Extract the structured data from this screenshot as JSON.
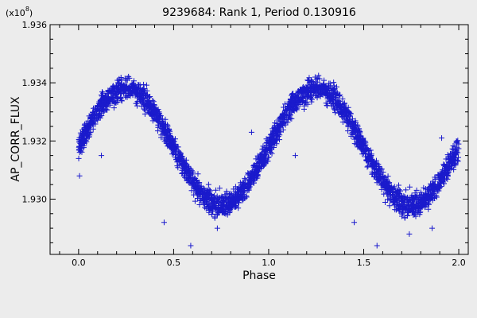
{
  "chart_data": {
    "type": "scatter",
    "title": "9239684: Rank 1, Period 0.130916",
    "xlabel": "Phase",
    "ylabel": "AP_CORR_FLUX",
    "y_multiplier": "(x10",
    "y_multiplier_exp": "8",
    "y_multiplier_close": ")",
    "xlim": [
      -0.15,
      2.05
    ],
    "ylim": [
      1.9281,
      1.936
    ],
    "x_ticks": [
      0.0,
      0.5,
      1.0,
      1.5,
      2.0
    ],
    "x_tick_labels": [
      "0.0",
      "0.5",
      "1.0",
      "1.5",
      "2.0"
    ],
    "y_ticks": [
      1.93,
      1.932,
      1.934,
      1.936
    ],
    "y_tick_labels": [
      "1.930",
      "1.932",
      "1.934",
      "1.936"
    ],
    "grid": false,
    "marker": "+",
    "series": [
      {
        "color": "#1a1acc",
        "model": {
          "mean": 1.9318,
          "amplitude": 0.002,
          "peak_phase": 0.25,
          "period_in_phase": 1.0,
          "scatter": 0.00045
        },
        "points_approx": [
          [
            0.0,
            1.932
          ],
          [
            0.05,
            1.9326
          ],
          [
            0.1,
            1.9331
          ],
          [
            0.15,
            1.9336
          ],
          [
            0.2,
            1.9339
          ],
          [
            0.25,
            1.934
          ],
          [
            0.3,
            1.9339
          ],
          [
            0.35,
            1.9336
          ],
          [
            0.4,
            1.9331
          ],
          [
            0.45,
            1.9325
          ],
          [
            0.5,
            1.9318
          ],
          [
            0.55,
            1.9311
          ],
          [
            0.6,
            1.9305
          ],
          [
            0.65,
            1.93
          ],
          [
            0.7,
            1.9297
          ],
          [
            0.75,
            1.9296
          ],
          [
            0.8,
            1.9297
          ],
          [
            0.85,
            1.93
          ],
          [
            0.9,
            1.9305
          ],
          [
            0.95,
            1.9311
          ],
          [
            1.0,
            1.9318
          ],
          [
            1.05,
            1.9326
          ],
          [
            1.1,
            1.9331
          ],
          [
            1.15,
            1.9336
          ],
          [
            1.2,
            1.9339
          ],
          [
            1.25,
            1.934
          ],
          [
            1.3,
            1.9339
          ],
          [
            1.35,
            1.9336
          ],
          [
            1.4,
            1.9331
          ],
          [
            1.45,
            1.9325
          ],
          [
            1.5,
            1.9318
          ],
          [
            1.55,
            1.9311
          ],
          [
            1.6,
            1.9305
          ],
          [
            1.65,
            1.93
          ],
          [
            1.7,
            1.9297
          ],
          [
            1.75,
            1.9296
          ],
          [
            1.8,
            1.9297
          ],
          [
            1.85,
            1.93
          ],
          [
            1.9,
            1.9305
          ],
          [
            1.95,
            1.9311
          ],
          [
            2.0,
            1.932
          ]
        ],
        "outliers": [
          [
            0.59,
            1.9284
          ],
          [
            1.57,
            1.9284
          ],
          [
            0.005,
            1.9308
          ],
          [
            0.12,
            1.9315
          ],
          [
            1.14,
            1.9315
          ],
          [
            0.45,
            1.9292
          ],
          [
            1.45,
            1.9292
          ],
          [
            0.91,
            1.9323
          ],
          [
            1.91,
            1.9321
          ],
          [
            1.86,
            1.929
          ],
          [
            1.74,
            1.9288
          ],
          [
            0.73,
            1.929
          ]
        ]
      }
    ]
  }
}
